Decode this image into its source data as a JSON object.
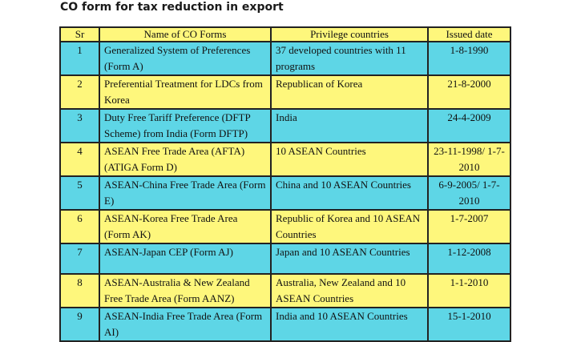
{
  "title": "CO form for tax reduction in export",
  "table": {
    "headers": [
      "Sr",
      "Name of CO Forms",
      "Privilege countries",
      "Issued date"
    ],
    "rows": [
      {
        "sr": "1",
        "name": "Generalized System of Preferences (Form A)",
        "privilege": "37 developed countries with 11 programs",
        "date": "1-8-1990",
        "color": "cyan"
      },
      {
        "sr": "2",
        "name": "Preferential Treatment for LDCs from Korea",
        "privilege": "Republican of Korea",
        "date": "21-8-2000",
        "color": "yellow"
      },
      {
        "sr": "3",
        "name": "Duty Free Tariff Preference (DFTP Scheme) from India (Form DFTP)",
        "privilege": "India",
        "date": "24-4-2009",
        "color": "cyan"
      },
      {
        "sr": "4",
        "name": "ASEAN Free Trade Area (AFTA) (ATIGA Form D)",
        "privilege": "10 ASEAN Countries",
        "date": "23-11-1998/ 1-7-2010",
        "color": "yellow"
      },
      {
        "sr": "5",
        "name": "ASEAN-China Free Trade Area (Form E)",
        "privilege": "China and 10 ASEAN Countries",
        "date": "6-9-2005/ 1-7-2010",
        "color": "cyan"
      },
      {
        "sr": "6",
        "name": "ASEAN-Korea Free Trade Area (Form AK)",
        "privilege": "Republic of Korea and 10 ASEAN Countries",
        "date": "1-7-2007",
        "color": "yellow"
      },
      {
        "sr": "7",
        "name": "ASEAN-Japan CEP (Form AJ)",
        "privilege": "Japan and 10 ASEAN Countries",
        "date": "1-12-2008",
        "color": "cyan"
      },
      {
        "sr": "8",
        "name": "ASEAN-Australia & New Zealand Free Trade Area (Form AANZ)",
        "privilege": "Australia, New Zealand and 10 ASEAN Countries",
        "date": "1-1-2010",
        "color": "yellow"
      },
      {
        "sr": "9",
        "name": "ASEAN-India Free Trade Area (Form AI)",
        "privilege": "India and 10 ASEAN Countries",
        "date": "15-1-2010",
        "color": "cyan"
      }
    ]
  },
  "colors": {
    "yellow": "#fef77c",
    "cyan": "#5ed6e6"
  }
}
